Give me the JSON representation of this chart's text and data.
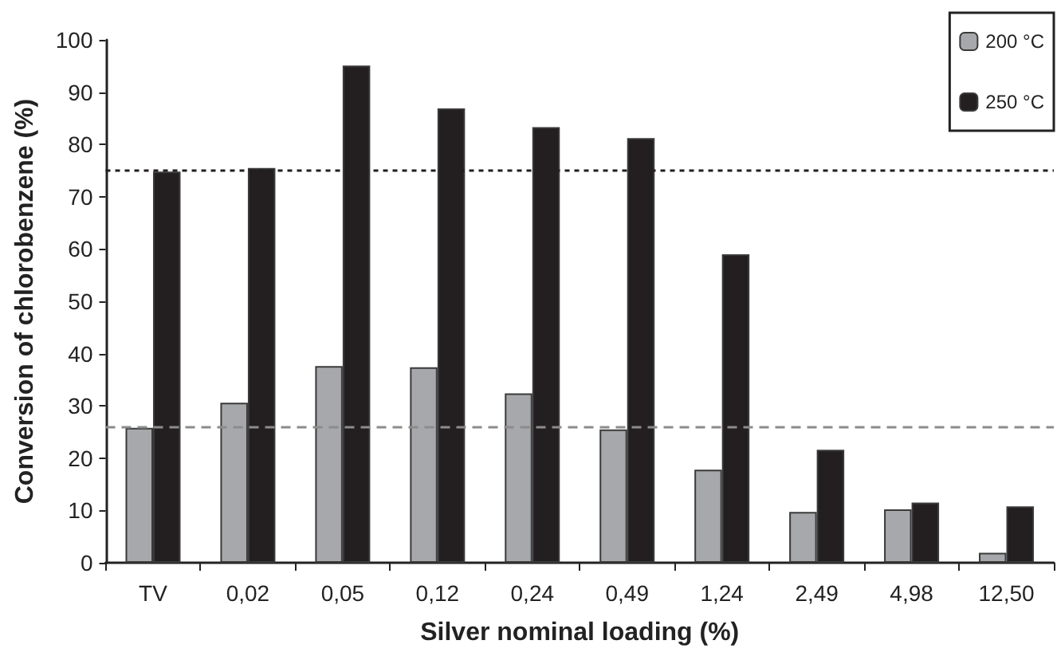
{
  "chart_data": {
    "type": "bar",
    "xlabel": "Silver nominal loading (%)",
    "ylabel": "Conversion of chlorobenzene (%)",
    "categories": [
      "TV",
      "0,02",
      "0,05",
      "0,12",
      "0,24",
      "0,49",
      "1,24",
      "2,49",
      "4,98",
      "12,50"
    ],
    "series": [
      {
        "name": "200 °C",
        "color": "#a7a8ab",
        "values": [
          25.8,
          30.6,
          37.6,
          37.4,
          32.4,
          25.5,
          17.8,
          9.7,
          10.2,
          1.9
        ]
      },
      {
        "name": "250 °C",
        "color": "#231f20",
        "values": [
          74.8,
          75.5,
          95.1,
          86.9,
          83.3,
          81.2,
          59,
          21.6,
          11.5,
          10.8
        ]
      }
    ],
    "ylim": [
      0,
      100
    ],
    "yticks": [
      0,
      10,
      20,
      30,
      40,
      50,
      60,
      70,
      80,
      90,
      100
    ],
    "grid": false,
    "legend": "top right",
    "ref_lines": [
      {
        "axis": "y",
        "value": 75,
        "color": "#231f20",
        "line_style": "dotted"
      },
      {
        "axis": "y",
        "value": 26,
        "color": "#8c8c8c",
        "line_style": "dashed"
      }
    ]
  }
}
